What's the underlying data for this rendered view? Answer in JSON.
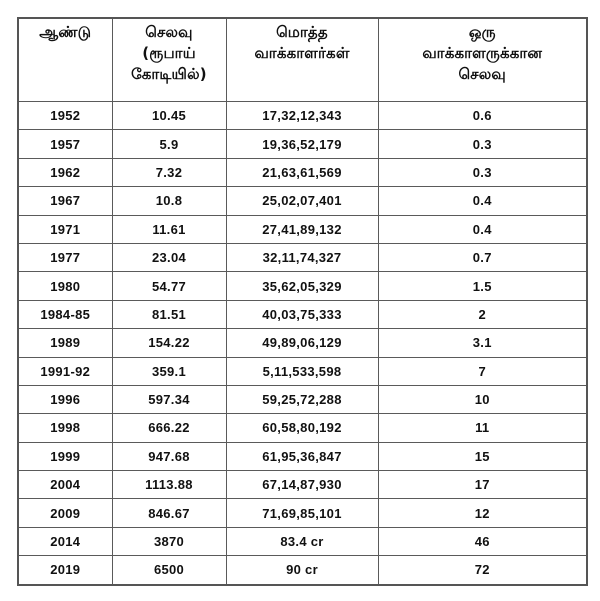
{
  "table": {
    "headers": [
      {
        "lines": [
          "ஆண்டு"
        ]
      },
      {
        "lines": [
          "செலவு",
          "(ரூபாய்",
          "கோடியில்)"
        ]
      },
      {
        "lines": [
          "மொத்த",
          "வாக்காளர்கள்"
        ]
      },
      {
        "lines": [
          "ஒரு",
          "வாக்காளருக்கான",
          "செலவு"
        ]
      }
    ],
    "rows": [
      [
        "1952",
        "10.45",
        "17,32,12,343",
        "0.6"
      ],
      [
        "1957",
        "5.9",
        "19,36,52,179",
        "0.3"
      ],
      [
        "1962",
        "7.32",
        "21,63,61,569",
        "0.3"
      ],
      [
        "1967",
        "10.8",
        "25,02,07,401",
        "0.4"
      ],
      [
        "1971",
        "11.61",
        "27,41,89,132",
        "0.4"
      ],
      [
        "1977",
        "23.04",
        "32,11,74,327",
        "0.7"
      ],
      [
        "1980",
        "54.77",
        "35,62,05,329",
        "1.5"
      ],
      [
        "1984-85",
        "81.51",
        "40,03,75,333",
        "2"
      ],
      [
        "1989",
        "154.22",
        "49,89,06,129",
        "3.1"
      ],
      [
        "1991-92",
        "359.1",
        "5,11,533,598",
        "7"
      ],
      [
        "1996",
        "597.34",
        "59,25,72,288",
        "10"
      ],
      [
        "1998",
        "666.22",
        "60,58,80,192",
        "11"
      ],
      [
        "1999",
        "947.68",
        "61,95,36,847",
        "15"
      ],
      [
        "2004",
        "1113.88",
        "67,14,87,930",
        "17"
      ],
      [
        "2009",
        "846.67",
        "71,69,85,101",
        "12"
      ],
      [
        "2014",
        "3870",
        "83.4 cr",
        "46"
      ],
      [
        "2019",
        "6500",
        "90 cr",
        "72"
      ]
    ]
  },
  "colors": {
    "border": "#5a5a5a",
    "text": "#111111",
    "background": "#ffffff"
  }
}
